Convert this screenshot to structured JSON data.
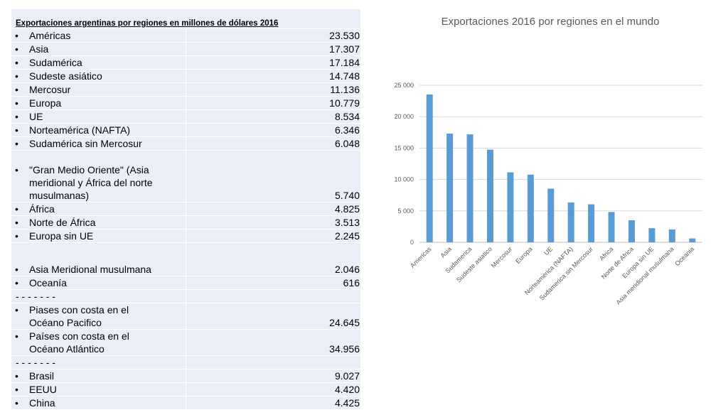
{
  "table": {
    "title": "Exportaciones argentinas por regiones en millones de dólares  2016",
    "rows": [
      {
        "bullet": "•",
        "label": "Américas",
        "value": "23.530"
      },
      {
        "bullet": "•",
        "label": "Asia",
        "value": "17.307"
      },
      {
        "bullet": "•",
        "label": "Sudamérica",
        "value": "17.184"
      },
      {
        "bullet": "•",
        "label": "Sudeste asiático",
        "value": "14.748"
      },
      {
        "bullet": "•",
        "label": "Mercosur",
        "value": "11.136"
      },
      {
        "bullet": "•",
        "label": "Europa",
        "value": "10.779"
      },
      {
        "bullet": "•",
        "label": "UE",
        "value": "8.534"
      },
      {
        "bullet": "•",
        "label": "Norteamérica (NAFTA)",
        "value": "6.346"
      },
      {
        "bullet": "•",
        "label": "Sudamérica sin Mercosur",
        "value": "6.048"
      },
      {
        "bullet": "•",
        "label": "\"Gran Medio Oriente\" (Asia meridional y África del norte musulmanas)",
        "value": "5.740"
      },
      {
        "bullet": "•",
        "label": "África",
        "value": "4.825"
      },
      {
        "bullet": "•",
        "label": "Norte de África",
        "value": "3.513"
      },
      {
        "bullet": "•",
        "label": "Europa sin UE",
        "value": "2.245"
      },
      {
        "bullet": "•",
        "label": "Asia Meridional musulmana",
        "value": "2.046"
      },
      {
        "bullet": "•",
        "label": "Oceanía",
        "value": "616"
      },
      {
        "separator": "- - - - - - -"
      },
      {
        "bullet": "•",
        "label": "Piases con costa en el Océano Pacifico",
        "value": "24.645"
      },
      {
        "bullet": "•",
        "label": "Países con costa en el  Océano Atlántico",
        "value": "34.956"
      },
      {
        "separator": "- - - - - - -"
      },
      {
        "bullet": "•",
        "label": "Brasil",
        "value": "9.027"
      },
      {
        "bullet": "•",
        "label": "EEUU",
        "value": "4.420"
      },
      {
        "bullet": "•",
        "label": "China",
        "value": "4.425"
      }
    ]
  },
  "chart_data": {
    "type": "bar",
    "title": "Exportaciones 2016 por regiones en el mundo",
    "categories": [
      "Americas",
      "Asia",
      "Sudamerica",
      "Sudeste asiatico",
      "Mercosur",
      "Europa",
      "UE",
      "Norteamerica (NAFTA)",
      "Sudamerica sin Mercosur",
      "Africa",
      "Norte de Africa",
      "Europa sin UE",
      "Asia meridional musulmana",
      "Oceania"
    ],
    "values": [
      23530,
      17307,
      17184,
      14748,
      11136,
      10779,
      8534,
      6346,
      6048,
      4825,
      3513,
      2245,
      2046,
      616
    ],
    "ylim": [
      0,
      25000
    ],
    "yticks": [
      0,
      5000,
      10000,
      15000,
      20000,
      25000
    ],
    "ytick_labels": [
      "0",
      "5 000",
      "10 000",
      "15 000",
      "20 000",
      "25 000"
    ],
    "grid": true,
    "bar_color": "#5b9bd5",
    "xlabel": "",
    "ylabel": ""
  }
}
